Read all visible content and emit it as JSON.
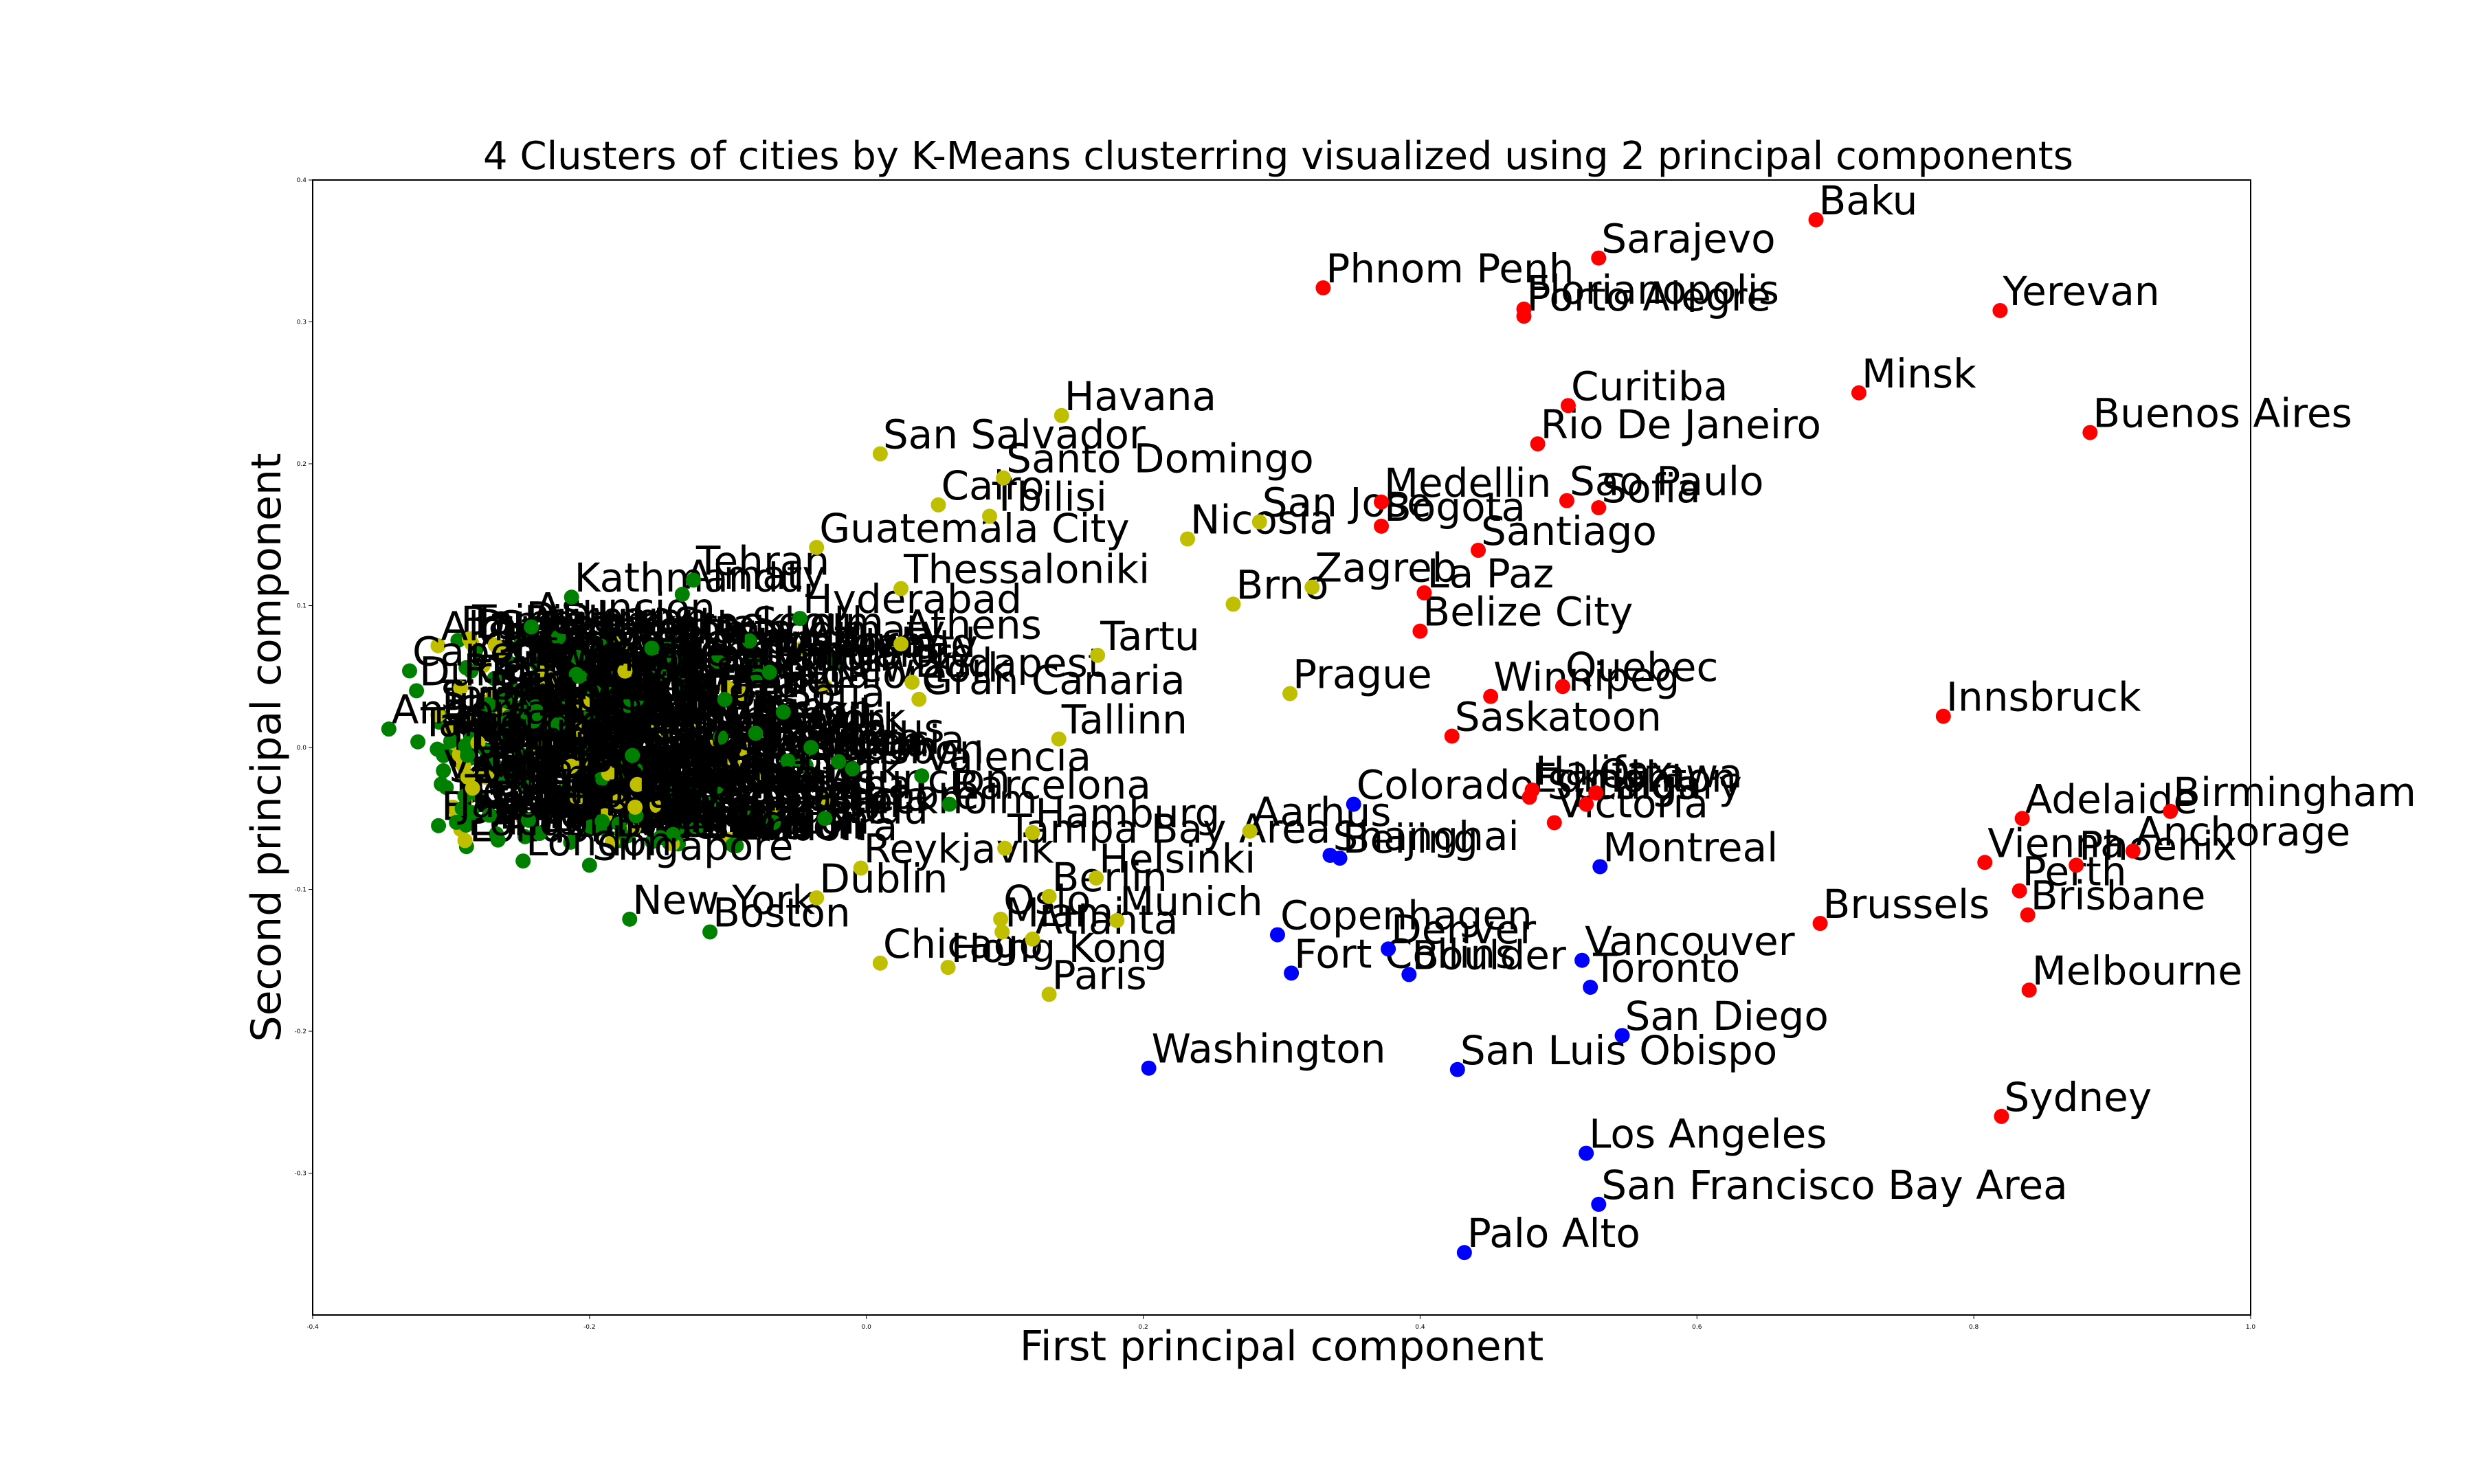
{
  "chart_data": {
    "type": "scatter",
    "title": "4 Clusters of cities by K-Means clusterring visualized using 2 principal components",
    "xlabel": "First principal component",
    "ylabel": "Second principal component",
    "xlim": [
      -0.4,
      1.0
    ],
    "ylim": [
      -0.4,
      0.4
    ],
    "xticks": [
      -0.4,
      -0.2,
      0.0,
      0.2,
      0.4,
      0.6,
      0.8,
      1.0
    ],
    "yticks": [
      -0.3,
      -0.2,
      -0.1,
      0.0,
      0.1,
      0.2,
      0.3,
      0.4
    ],
    "xtick_labels": [
      "-0.4",
      "-0.2",
      "0.0",
      "0.2",
      "0.4",
      "0.6",
      "0.8",
      "1.0"
    ],
    "ytick_labels": [
      "-0.3",
      "-0.2",
      "-0.1",
      "0.0",
      "0.1",
      "0.2",
      "0.3",
      "0.4"
    ],
    "grid": false,
    "cluster_colors": [
      "#ff0000",
      "#0000ff",
      "#bfbf00",
      "#008000"
    ],
    "points": [
      {
        "label": "Baku",
        "x": 0.686,
        "y": 0.372,
        "cluster": 0
      },
      {
        "label": "Sarajevo",
        "x": 0.529,
        "y": 0.345,
        "cluster": 0
      },
      {
        "label": "Phnom Penh",
        "x": 0.33,
        "y": 0.324,
        "cluster": 0
      },
      {
        "label": "Florianopolis",
        "x": 0.475,
        "y": 0.309,
        "cluster": 0
      },
      {
        "label": "Porto Alegre",
        "x": 0.475,
        "y": 0.304,
        "cluster": 0
      },
      {
        "label": "Yerevan",
        "x": 0.819,
        "y": 0.308,
        "cluster": 0
      },
      {
        "label": "Minsk",
        "x": 0.717,
        "y": 0.25,
        "cluster": 0
      },
      {
        "label": "Curitiba",
        "x": 0.507,
        "y": 0.241,
        "cluster": 0
      },
      {
        "label": "Buenos Aires",
        "x": 0.884,
        "y": 0.222,
        "cluster": 0
      },
      {
        "label": "Rio De Janeiro",
        "x": 0.485,
        "y": 0.214,
        "cluster": 0
      },
      {
        "label": "Medellin",
        "x": 0.372,
        "y": 0.173,
        "cluster": 0
      },
      {
        "label": "Sao Paulo",
        "x": 0.506,
        "y": 0.174,
        "cluster": 0
      },
      {
        "label": "Sofia",
        "x": 0.529,
        "y": 0.169,
        "cluster": 0
      },
      {
        "label": "Bogota",
        "x": 0.372,
        "y": 0.156,
        "cluster": 0
      },
      {
        "label": "Santiago",
        "x": 0.442,
        "y": 0.139,
        "cluster": 0
      },
      {
        "label": "La Paz",
        "x": 0.403,
        "y": 0.109,
        "cluster": 0
      },
      {
        "label": "Belize City",
        "x": 0.4,
        "y": 0.082,
        "cluster": 0
      },
      {
        "label": "Quebec",
        "x": 0.503,
        "y": 0.043,
        "cluster": 0
      },
      {
        "label": "Winnipeg",
        "x": 0.451,
        "y": 0.036,
        "cluster": 0
      },
      {
        "label": "Innsbruck",
        "x": 0.778,
        "y": 0.022,
        "cluster": 0
      },
      {
        "label": "Saskatoon",
        "x": 0.423,
        "y": 0.008,
        "cluster": 0
      },
      {
        "label": "Halifax",
        "x": 0.481,
        "y": -0.03,
        "cluster": 0
      },
      {
        "label": "Edmonton",
        "x": 0.479,
        "y": -0.035,
        "cluster": 0
      },
      {
        "label": "Ottawa",
        "x": 0.527,
        "y": -0.032,
        "cluster": 0
      },
      {
        "label": "Calgary",
        "x": 0.52,
        "y": -0.04,
        "cluster": 0
      },
      {
        "label": "Victoria",
        "x": 0.497,
        "y": -0.053,
        "cluster": 0
      },
      {
        "label": "Adelaide",
        "x": 0.835,
        "y": -0.05,
        "cluster": 0
      },
      {
        "label": "Birmingham",
        "x": 0.942,
        "y": -0.045,
        "cluster": 0
      },
      {
        "label": "Anchorage",
        "x": 0.915,
        "y": -0.073,
        "cluster": 0
      },
      {
        "label": "Vienna",
        "x": 0.808,
        "y": -0.081,
        "cluster": 0
      },
      {
        "label": "Phoenix",
        "x": 0.874,
        "y": -0.083,
        "cluster": 0
      },
      {
        "label": "Perth",
        "x": 0.833,
        "y": -0.101,
        "cluster": 0
      },
      {
        "label": "Brisbane",
        "x": 0.839,
        "y": -0.118,
        "cluster": 0
      },
      {
        "label": "Brussels",
        "x": 0.689,
        "y": -0.124,
        "cluster": 0
      },
      {
        "label": "Melbourne",
        "x": 0.84,
        "y": -0.171,
        "cluster": 0
      },
      {
        "label": "Sydney",
        "x": 0.82,
        "y": -0.26,
        "cluster": 0
      },
      {
        "label": "Colorado Springs",
        "x": 0.352,
        "y": -0.04,
        "cluster": 1
      },
      {
        "label": "Shanghai",
        "x": 0.335,
        "y": -0.076,
        "cluster": 1
      },
      {
        "label": "Beijing",
        "x": 0.342,
        "y": -0.078,
        "cluster": 1
      },
      {
        "label": "Montreal",
        "x": 0.53,
        "y": -0.084,
        "cluster": 1
      },
      {
        "label": "Copenhagen",
        "x": 0.297,
        "y": -0.132,
        "cluster": 1
      },
      {
        "label": "Denver",
        "x": 0.377,
        "y": -0.142,
        "cluster": 1
      },
      {
        "label": "Fort Collins",
        "x": 0.307,
        "y": -0.159,
        "cluster": 1
      },
      {
        "label": "Boulder",
        "x": 0.392,
        "y": -0.16,
        "cluster": 1
      },
      {
        "label": "Vancouver",
        "x": 0.517,
        "y": -0.15,
        "cluster": 1
      },
      {
        "label": "Toronto",
        "x": 0.523,
        "y": -0.169,
        "cluster": 1
      },
      {
        "label": "San Diego",
        "x": 0.546,
        "y": -0.203,
        "cluster": 1
      },
      {
        "label": "Washington",
        "x": 0.204,
        "y": -0.226,
        "cluster": 1
      },
      {
        "label": "San Luis Obispo",
        "x": 0.427,
        "y": -0.227,
        "cluster": 1
      },
      {
        "label": "Los Angeles",
        "x": 0.52,
        "y": -0.286,
        "cluster": 1
      },
      {
        "label": "San Francisco Bay Area",
        "x": 0.529,
        "y": -0.322,
        "cluster": 1
      },
      {
        "label": "Palo Alto",
        "x": 0.432,
        "y": -0.356,
        "cluster": 1
      },
      {
        "label": "Havana",
        "x": 0.141,
        "y": 0.234,
        "cluster": 2
      },
      {
        "label": "San Salvador",
        "x": 0.01,
        "y": 0.207,
        "cluster": 2
      },
      {
        "label": "Santo Domingo",
        "x": 0.099,
        "y": 0.19,
        "cluster": 2
      },
      {
        "label": "Cairo",
        "x": 0.052,
        "y": 0.171,
        "cluster": 2
      },
      {
        "label": "Tbilisi",
        "x": 0.089,
        "y": 0.163,
        "cluster": 2
      },
      {
        "label": "Guatemala City",
        "x": -0.036,
        "y": 0.141,
        "cluster": 2
      },
      {
        "label": "San Jose",
        "x": 0.284,
        "y": 0.159,
        "cluster": 2
      },
      {
        "label": "Nicosia",
        "x": 0.232,
        "y": 0.147,
        "cluster": 2
      },
      {
        "label": "Thessaloniki",
        "x": 0.025,
        "y": 0.112,
        "cluster": 2
      },
      {
        "label": "Zagreb",
        "x": 0.322,
        "y": 0.113,
        "cluster": 2
      },
      {
        "label": "Brno",
        "x": 0.265,
        "y": 0.101,
        "cluster": 2
      },
      {
        "label": "Athens",
        "x": 0.025,
        "y": 0.073,
        "cluster": 2
      },
      {
        "label": "Tartu",
        "x": 0.167,
        "y": 0.065,
        "cluster": 2
      },
      {
        "label": "Budapest",
        "x": 0.033,
        "y": 0.046,
        "cluster": 2
      },
      {
        "label": "Prague",
        "x": 0.306,
        "y": 0.038,
        "cluster": 2
      },
      {
        "label": "Gran Canaria",
        "x": 0.038,
        "y": 0.034,
        "cluster": 2
      },
      {
        "label": "Tallinn",
        "x": 0.139,
        "y": 0.006,
        "cluster": 2
      },
      {
        "label": "Aarhus",
        "x": 0.277,
        "y": -0.059,
        "cluster": 2
      },
      {
        "label": "Tampa Bay Area",
        "x": 0.1,
        "y": -0.071,
        "cluster": 2
      },
      {
        "label": "Hamburg",
        "x": 0.12,
        "y": -0.06,
        "cluster": 2
      },
      {
        "label": "Reykjavik",
        "x": -0.004,
        "y": -0.085,
        "cluster": 2
      },
      {
        "label": "Helsinki",
        "x": 0.166,
        "y": -0.092,
        "cluster": 2
      },
      {
        "label": "Dublin",
        "x": -0.036,
        "y": -0.106,
        "cluster": 2
      },
      {
        "label": "Berlin",
        "x": 0.132,
        "y": -0.105,
        "cluster": 2
      },
      {
        "label": "Munich",
        "x": 0.181,
        "y": -0.122,
        "cluster": 2
      },
      {
        "label": "Oslo",
        "x": 0.097,
        "y": -0.121,
        "cluster": 2
      },
      {
        "label": "Miami",
        "x": 0.098,
        "y": -0.13,
        "cluster": 2
      },
      {
        "label": "Atlanta",
        "x": 0.12,
        "y": -0.135,
        "cluster": 2
      },
      {
        "label": "Chicago",
        "x": 0.01,
        "y": -0.152,
        "cluster": 2
      },
      {
        "label": "Hong Kong",
        "x": 0.059,
        "y": -0.155,
        "cluster": 2
      },
      {
        "label": "Paris",
        "x": 0.132,
        "y": -0.174,
        "cluster": 2
      },
      {
        "label": "Tehran",
        "x": -0.125,
        "y": 0.118,
        "cluster": 3
      },
      {
        "label": "Kathmandu",
        "x": -0.213,
        "y": 0.106,
        "cluster": 3
      },
      {
        "label": "Almaty",
        "x": -0.133,
        "y": 0.108,
        "cluster": 3
      },
      {
        "label": "Asuncion",
        "x": -0.242,
        "y": 0.085,
        "cluster": 3
      },
      {
        "label": "Hyderabad",
        "x": -0.048,
        "y": 0.091,
        "cluster": 3
      },
      {
        "label": "Cape Town",
        "x": -0.33,
        "y": 0.054,
        "cluster": 3
      },
      {
        "label": "Jakarta",
        "x": -0.155,
        "y": 0.07,
        "cluster": 3
      },
      {
        "label": "Bangalore",
        "x": -0.07,
        "y": 0.053,
        "cluster": 3
      },
      {
        "label": "Durban",
        "x": -0.325,
        "y": 0.04,
        "cluster": 3
      },
      {
        "label": "Andorra",
        "x": -0.345,
        "y": 0.013,
        "cluster": 3
      },
      {
        "label": "Taipei",
        "x": -0.324,
        "y": 0.004,
        "cluster": 3
      },
      {
        "label": "Sofia",
        "x": -0.06,
        "y": 0.025,
        "cluster": 3
      },
      {
        "label": "Seoul",
        "x": -0.08,
        "y": 0.01,
        "cluster": 3
      },
      {
        "label": "Vilnius",
        "x": -0.04,
        "y": 0.0,
        "cluster": 3
      },
      {
        "label": "Riga",
        "x": -0.02,
        "y": -0.01,
        "cluster": 3
      },
      {
        "label": "Lisbon",
        "x": -0.01,
        "y": -0.015,
        "cluster": 3
      },
      {
        "label": "Valencia",
        "x": 0.04,
        "y": -0.02,
        "cluster": 3
      },
      {
        "label": "Barcelona",
        "x": 0.06,
        "y": -0.04,
        "cluster": 3
      },
      {
        "label": "Stockholm",
        "x": -0.03,
        "y": -0.05,
        "cluster": 3
      },
      {
        "label": "Singapore",
        "x": -0.2,
        "y": -0.083,
        "cluster": 3
      },
      {
        "label": "London",
        "x": -0.248,
        "y": -0.08,
        "cluster": 3
      },
      {
        "label": "New York",
        "x": -0.171,
        "y": -0.121,
        "cluster": 3
      },
      {
        "label": "Boston",
        "x": -0.113,
        "y": -0.13,
        "cluster": 3
      }
    ],
    "cluster_mass": {
      "comment_free": true,
      "x_range": [
        -0.31,
        0.0
      ],
      "y_range": [
        -0.07,
        0.08
      ]
    }
  }
}
